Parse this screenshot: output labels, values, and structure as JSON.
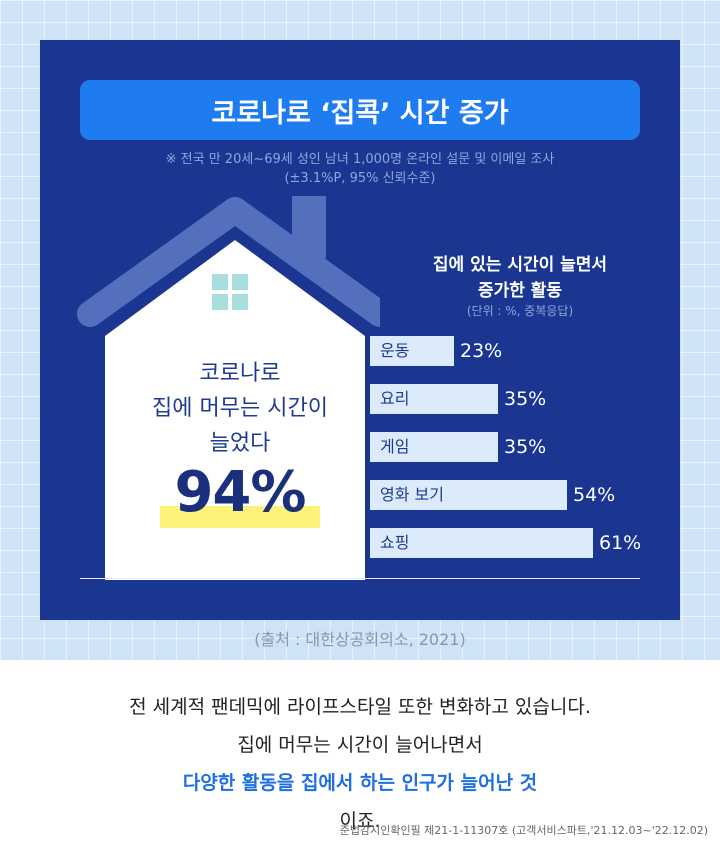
{
  "title": "코로나로 ‘집콕’ 시간 증가",
  "survey_note": {
    "line1": "※ 전국 만 20세~69세 성인 남녀 1,000명 온라인 설문 및 이메일 조사",
    "line2": "(±3.1%P, 95% 신뢰수준)"
  },
  "house": {
    "line1": "코로나로",
    "line2": "집에 머무는 시간이",
    "line3": "늘었다",
    "big_percent": "94%"
  },
  "chart_data": {
    "type": "bar",
    "title_line1": "집에 있는 시간이 늘면서",
    "title_line2": "증가한 활동",
    "unit": "(단위 : %, 중복응답)",
    "categories": [
      "운동",
      "요리",
      "게임",
      "영화 보기",
      "쇼핑"
    ],
    "values": [
      23,
      35,
      35,
      54,
      61
    ],
    "value_labels": [
      "23%",
      "35%",
      "35%",
      "54%",
      "61%"
    ]
  },
  "source": "(출처 : 대한상공회의소, 2021)",
  "bottom": {
    "line1": "전 세계적 팬데믹에 라이프스타일 또한 변화하고 있습니다.",
    "line2": "집에 머무는 시간이 늘어나면서",
    "line3_highlight": "다양한 활동을 집에서 하는 인구가 늘어난 것",
    "line3_tail": "이죠."
  },
  "compliance": "준법감시인확인필 제21-1-11307호 (고객서비스파트,'21.12.03~'22.12.02)",
  "colors": {
    "panel": "#1a3691",
    "title_bar": "#1f7cf0",
    "bar": "#dcebfb",
    "highlight_text": "#1f6fe0",
    "marker": "#fbf27a"
  }
}
